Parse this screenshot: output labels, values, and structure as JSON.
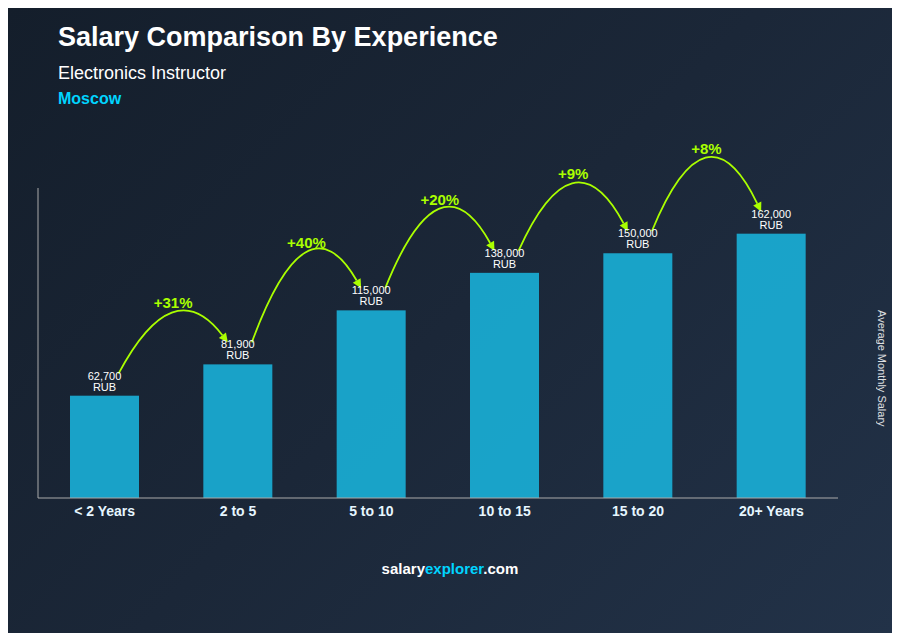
{
  "chart_data": {
    "type": "bar",
    "title": "Salary Comparison By Experience",
    "subtitle": "Electronics Instructor",
    "city": "Moscow",
    "ylabel": "Average Monthly Salary",
    "categories": [
      "< 2 Years",
      "2 to 5",
      "5 to 10",
      "10 to 15",
      "15 to 20",
      "20+ Years"
    ],
    "values": [
      62700,
      81900,
      115000,
      138000,
      150000,
      162000
    ],
    "value_labels": [
      "62,700 RUB",
      "81,900 RUB",
      "115,000 RUB",
      "138,000 RUB",
      "150,000 RUB",
      "162,000 RUB"
    ],
    "data_labels": true,
    "color": "#1ab0d8",
    "ylim": [
      0,
      190000
    ],
    "grid": false,
    "tick_labels": "x",
    "annotations": [
      {
        "text": "+31%",
        "from": "< 2 Years",
        "to": "2 to 5"
      },
      {
        "text": "+40%",
        "from": "2 to 5",
        "to": "5 to 10"
      },
      {
        "text": "+20%",
        "from": "5 to 10",
        "to": "10 to 15"
      },
      {
        "text": "+9%",
        "from": "10 to 15",
        "to": "15 to 20"
      },
      {
        "text": "+8%",
        "from": "15 to 20",
        "to": "20+ Years"
      }
    ],
    "watermark": [
      "salary",
      "explorer",
      ".com"
    ]
  }
}
